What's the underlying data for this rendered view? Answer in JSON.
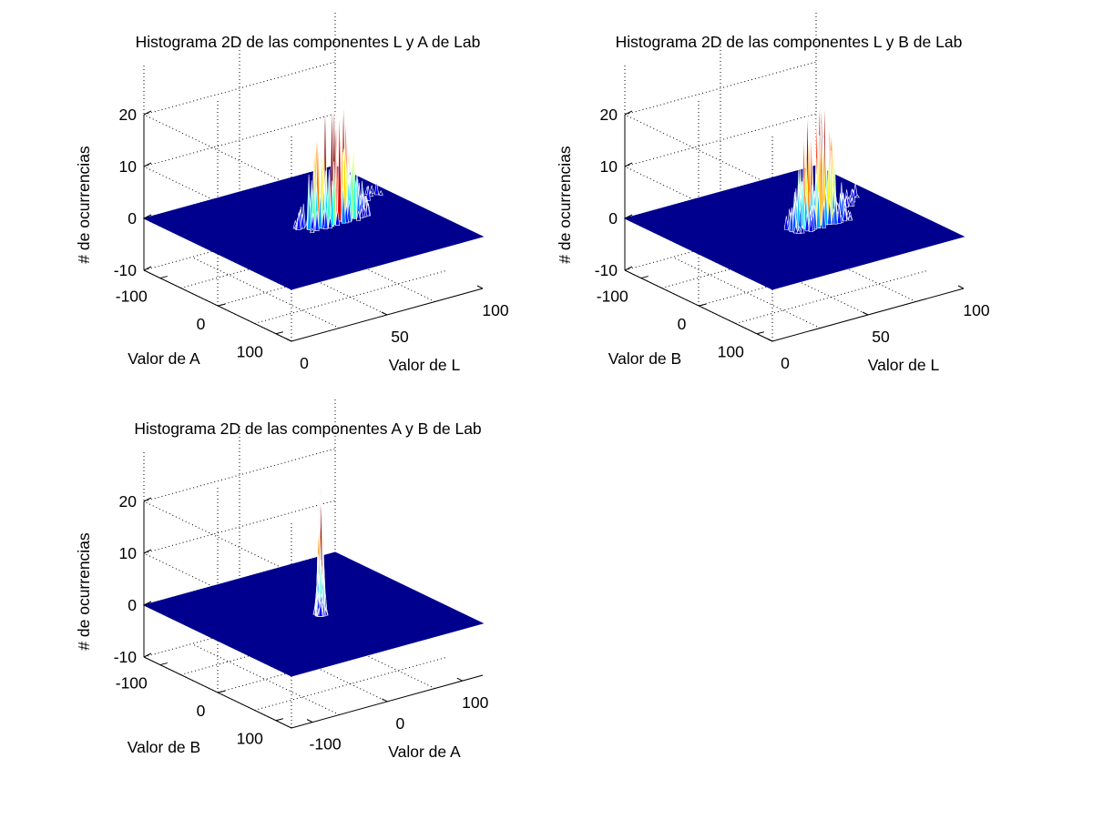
{
  "chart_data": [
    {
      "type": "surface",
      "title": "Histograma 2D de las componentes L y A de Lab",
      "zlabel": "# de ocurrencias",
      "zticks": [
        "20",
        "10",
        "0",
        "-10"
      ],
      "zlim": [
        -10,
        25
      ],
      "ylabel": "Valor de A",
      "yticks": [
        "100",
        "0",
        "-100"
      ],
      "ylim": [
        -128,
        127
      ],
      "xlabel": "Valor de L",
      "xticks": [
        "0",
        "50",
        "100"
      ],
      "xlim": [
        0,
        100
      ],
      "grid": true,
      "colormap": "jet",
      "peak": {
        "x": 60,
        "y": 0
      },
      "peak_spread": {
        "x": 14,
        "y": 10
      },
      "tail": {
        "to_x": 95,
        "to_y": -40
      },
      "peak_value_clipped": 25
    },
    {
      "type": "surface",
      "title": "Histograma 2D de las componentes L y B de Lab",
      "zlabel": "# de ocurrencias",
      "zticks": [
        "20",
        "10",
        "0",
        "-10"
      ],
      "zlim": [
        -10,
        25
      ],
      "ylabel": "Valor de B",
      "yticks": [
        "100",
        "0",
        "-100"
      ],
      "ylim": [
        -128,
        127
      ],
      "xlabel": "Valor de L",
      "xticks": [
        "0",
        "50",
        "100"
      ],
      "xlim": [
        0,
        100
      ],
      "grid": true,
      "colormap": "jet",
      "peak": {
        "x": 60,
        "y": 5
      },
      "peak_spread": {
        "x": 12,
        "y": 12
      },
      "tail": {
        "to_x": 95,
        "to_y": -30
      },
      "peak_value_clipped": 25
    },
    {
      "type": "surface",
      "title": "Histograma 2D de las componentes A y B de Lab",
      "zlabel": "# de ocurrencias",
      "zticks": [
        "20",
        "10",
        "0",
        "-10"
      ],
      "zlim": [
        -10,
        25
      ],
      "ylabel": "Valor de B",
      "yticks": [
        "100",
        "0",
        "-100"
      ],
      "ylim": [
        -128,
        127
      ],
      "xlabel": "Valor de A",
      "xticks": [
        "-100",
        "0",
        "100"
      ],
      "xlim": [
        -128,
        127
      ],
      "grid": true,
      "colormap": "jet",
      "peak": {
        "x": 5,
        "y": 5
      },
      "peak_spread": {
        "x": 4,
        "y": 4
      },
      "tail": null,
      "peak_value_clipped": 25
    }
  ]
}
